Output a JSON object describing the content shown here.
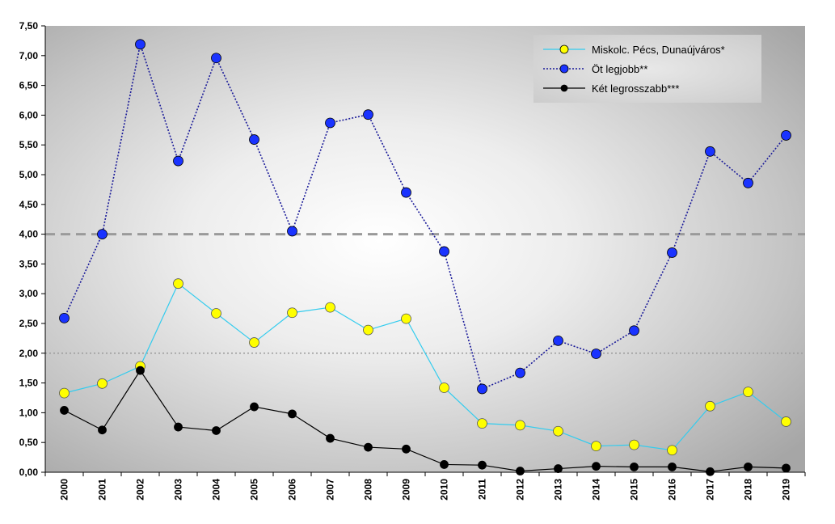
{
  "chart_data": {
    "type": "line",
    "categories": [
      "2000",
      "2001",
      "2002",
      "2003",
      "2004",
      "2005",
      "2006",
      "2007",
      "2008",
      "2009",
      "2010",
      "2011",
      "2012",
      "2013",
      "2014",
      "2015",
      "2016",
      "2017",
      "2018",
      "2019"
    ],
    "y_ticks": [
      "0,00",
      "0,50",
      "1,00",
      "1,50",
      "2,00",
      "2,50",
      "3,00",
      "3,50",
      "4,00",
      "4,50",
      "5,00",
      "5,50",
      "6,00",
      "6,50",
      "7,00",
      "7,50"
    ],
    "ylim": [
      0,
      7.5
    ],
    "grid": false,
    "reference_lines": [
      {
        "value": 4.0,
        "style": "dashed",
        "color": "#9a9a9a"
      },
      {
        "value": 2.0,
        "style": "dotted",
        "color": "#9a9a9a"
      }
    ],
    "legend_position": "top-right",
    "series": [
      {
        "name": "Miskolc. Pécs, Dunaújváros*",
        "line_color": "#33ccee",
        "marker_color": "#ffff00",
        "line_style": "solid",
        "values": [
          1.33,
          1.49,
          1.78,
          3.17,
          2.67,
          2.18,
          2.68,
          2.77,
          2.39,
          2.58,
          1.42,
          0.82,
          0.79,
          0.69,
          0.44,
          0.46,
          0.37,
          1.11,
          1.35,
          0.85
        ]
      },
      {
        "name": "Öt legjobb**",
        "line_color": "#1a1a99",
        "marker_color": "#1a33ff",
        "line_style": "dotted",
        "values": [
          2.59,
          4.0,
          7.19,
          5.23,
          6.96,
          5.59,
          4.05,
          5.87,
          6.01,
          4.7,
          3.71,
          1.4,
          1.67,
          2.21,
          1.99,
          2.38,
          3.69,
          5.39,
          4.86,
          5.66
        ]
      },
      {
        "name": "Két legrosszabb***",
        "line_color": "#000000",
        "marker_color": "#000000",
        "line_style": "solid",
        "values": [
          1.04,
          0.71,
          1.71,
          0.76,
          0.7,
          1.1,
          0.98,
          0.57,
          0.42,
          0.39,
          0.13,
          0.12,
          0.02,
          0.06,
          0.1,
          0.09,
          0.09,
          0.01,
          0.09,
          0.07
        ]
      }
    ]
  }
}
